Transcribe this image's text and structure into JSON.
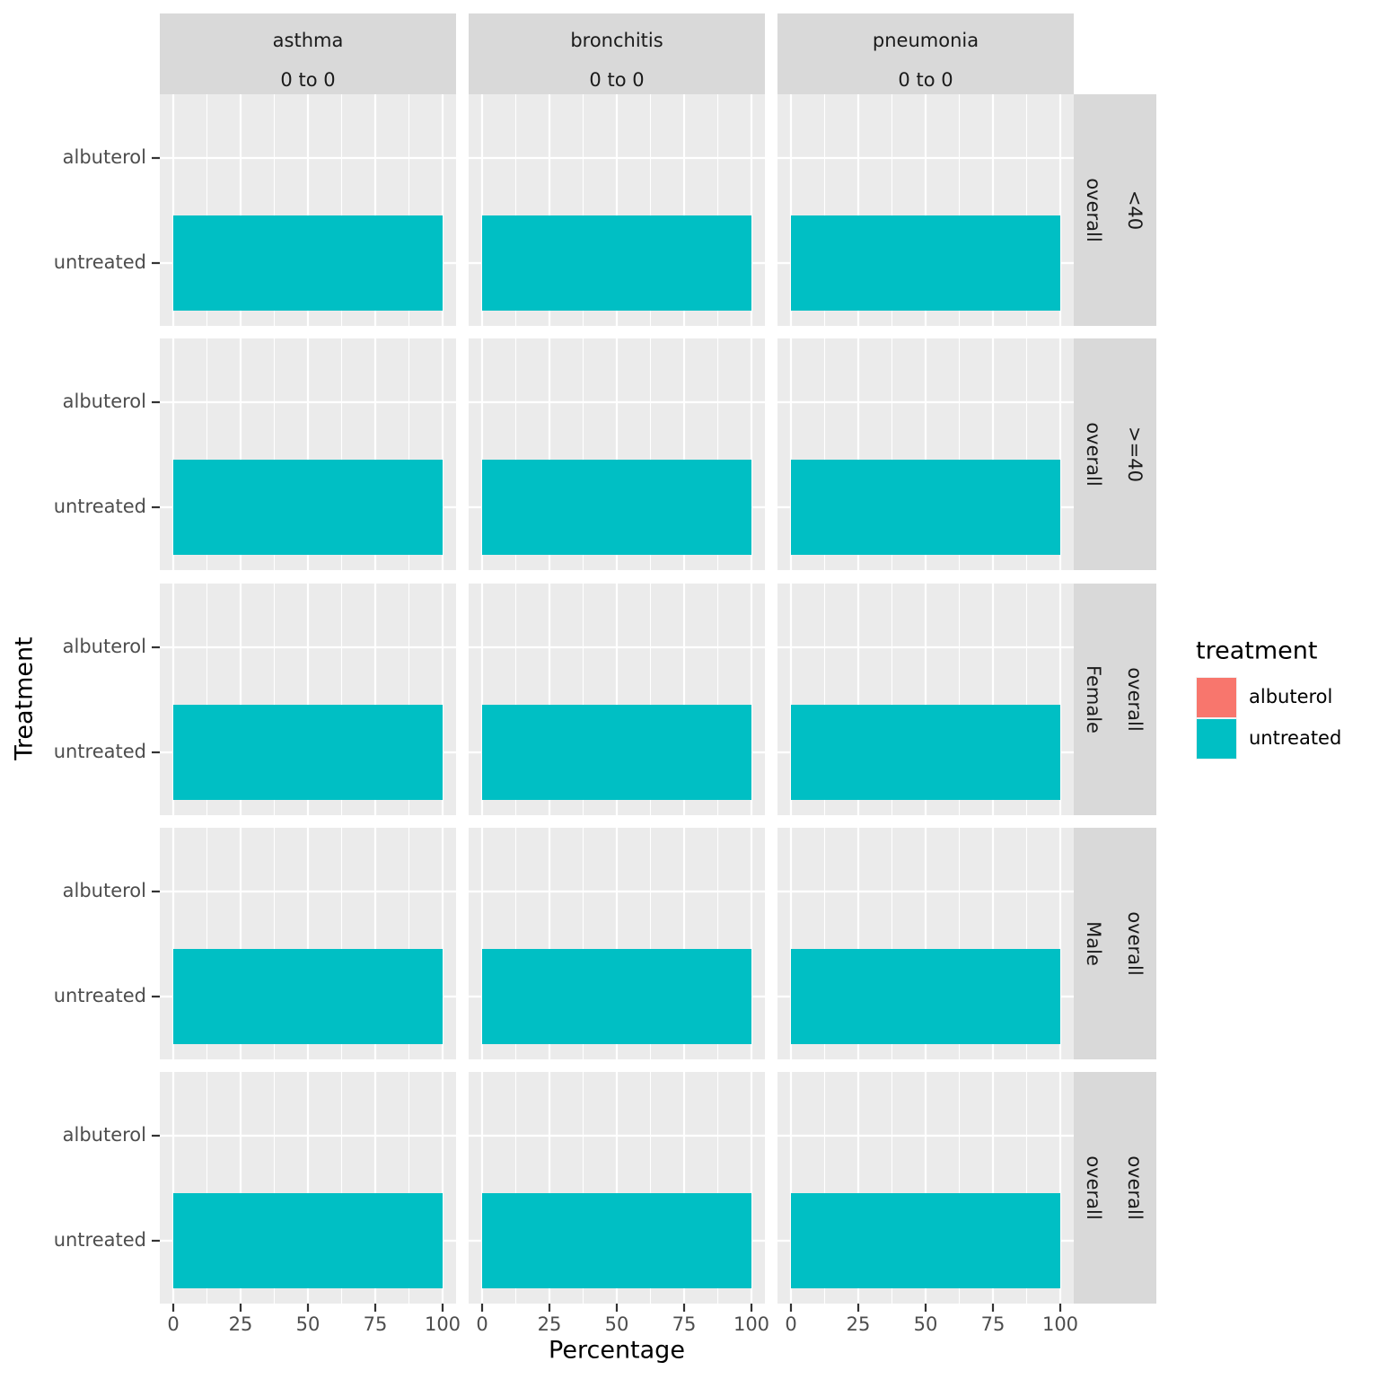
{
  "chart_data": {
    "type": "bar",
    "orientation": "horizontal",
    "xlabel": "Percentage",
    "ylabel": "Treatment",
    "xlim": [
      0,
      100
    ],
    "x_ticks": [
      "0",
      "25",
      "50",
      "75",
      "100"
    ],
    "categories": [
      "albuterol",
      "untreated"
    ],
    "facet_columns": [
      {
        "name": "asthma",
        "sublabel": "0 to 0"
      },
      {
        "name": "bronchitis",
        "sublabel": "0 to 0"
      },
      {
        "name": "pneumonia",
        "sublabel": "0 to 0"
      }
    ],
    "facet_rows": [
      {
        "outer": "<40",
        "inner": "overall"
      },
      {
        "outer": ">=40",
        "inner": "overall"
      },
      {
        "outer": "overall",
        "inner": "Female"
      },
      {
        "outer": "overall",
        "inner": "Male"
      },
      {
        "outer": "overall",
        "inner": "overall"
      }
    ],
    "values": [
      [
        [
          0,
          100
        ],
        [
          0,
          100
        ],
        [
          0,
          100
        ]
      ],
      [
        [
          0,
          100
        ],
        [
          0,
          100
        ],
        [
          0,
          100
        ]
      ],
      [
        [
          0,
          100
        ],
        [
          0,
          100
        ],
        [
          0,
          100
        ]
      ],
      [
        [
          0,
          100
        ],
        [
          0,
          100
        ],
        [
          0,
          100
        ]
      ],
      [
        [
          0,
          100
        ],
        [
          0,
          100
        ],
        [
          0,
          100
        ]
      ]
    ],
    "legend": {
      "title": "treatment",
      "placement": "right",
      "items": [
        {
          "label": "albuterol",
          "color": "#F8766D"
        },
        {
          "label": "untreated",
          "color": "#00BFC4"
        }
      ]
    },
    "grid": true,
    "colors": {
      "panel_background": "#EBEBEB",
      "strip_background": "#D9D9D9",
      "grid": "#FFFFFF"
    }
  }
}
